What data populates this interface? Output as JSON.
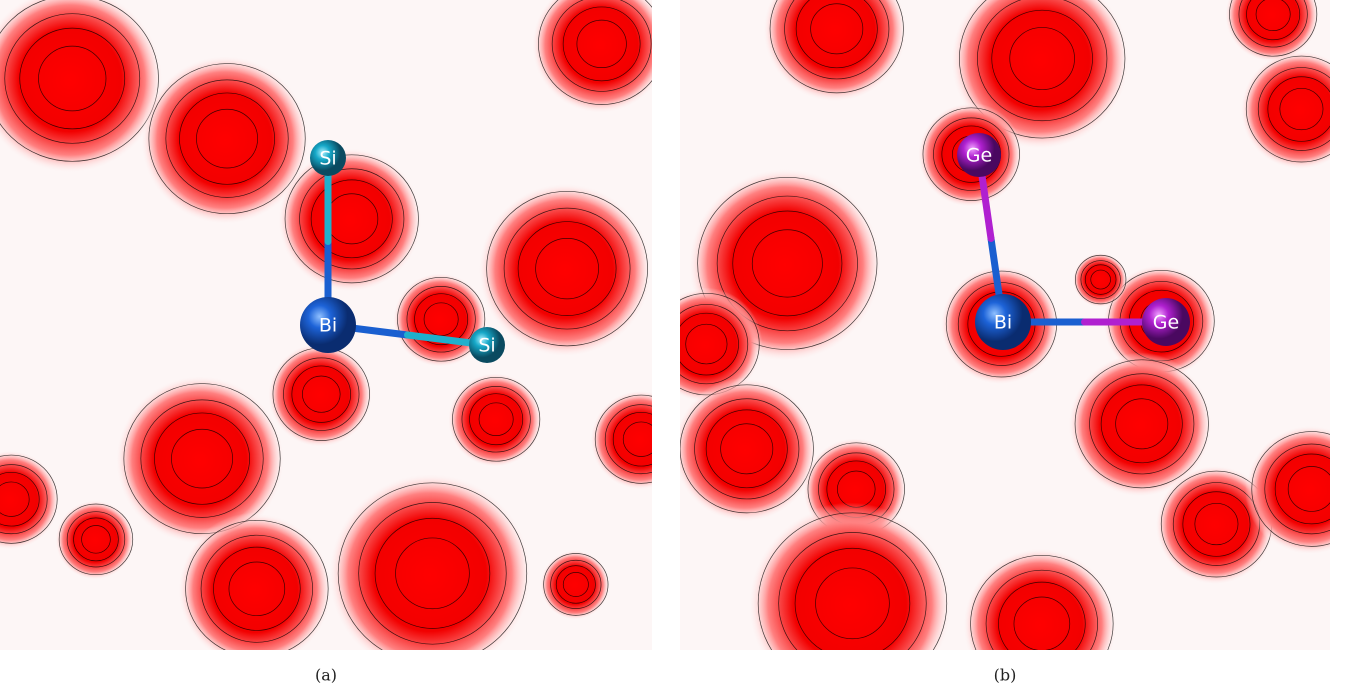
{
  "panels": [
    {
      "atoms": [
        "Si",
        "Bi",
        "Si"
      ],
      "caption": "(a)"
    },
    {
      "atoms": [
        "Ge",
        "Bi",
        "Ge"
      ],
      "caption": "(b)"
    }
  ]
}
